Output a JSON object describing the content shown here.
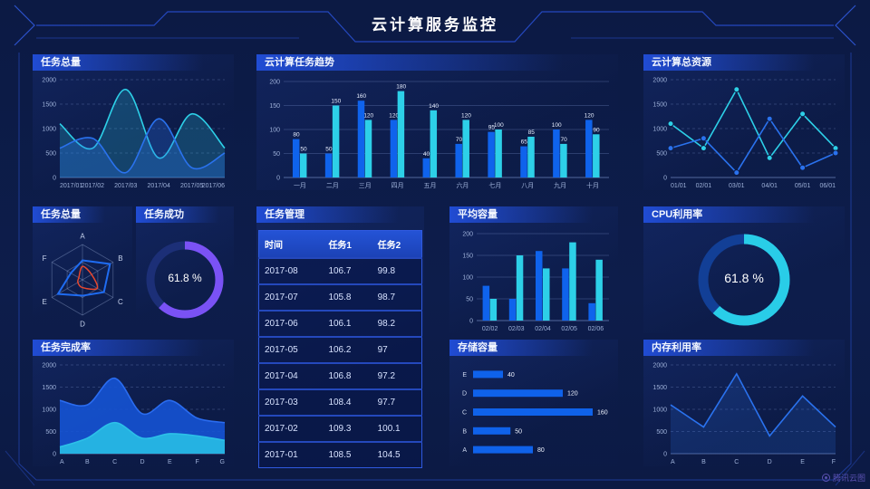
{
  "header": {
    "title": "云计算服务监控"
  },
  "watermark": {
    "label": "腾讯云图"
  },
  "colors": {
    "blue": "#0f63ec",
    "cyan": "#2dd0e8",
    "purple": "#7a52f5",
    "red": "#e6472e",
    "bg": "#0c1a44",
    "line": "#2c55da"
  },
  "panels": {
    "task_total_area": {
      "title": "任务总量"
    },
    "task_trend": {
      "title": "云计算任务趋势"
    },
    "total_resources": {
      "title": "云计算总资源"
    },
    "task_total_radar": {
      "title": "任务总量"
    },
    "task_success": {
      "title": "任务成功",
      "value": "61.8 %"
    },
    "task_manage": {
      "title": "任务管理"
    },
    "avg_capacity": {
      "title": "平均容量"
    },
    "cpu": {
      "title": "CPU利用率",
      "value": "61.8 %"
    },
    "completion": {
      "title": "任务完成率"
    },
    "storage": {
      "title": "存储容量"
    },
    "memory": {
      "title": "内存利用率"
    }
  },
  "table": {
    "columns": [
      "时间",
      "任务1",
      "任务2"
    ],
    "rows": [
      [
        "2017-08",
        "106.7",
        "99.8"
      ],
      [
        "2017-07",
        "105.8",
        "98.7"
      ],
      [
        "2017-06",
        "106.1",
        "98.2"
      ],
      [
        "2017-05",
        "106.2",
        "97"
      ],
      [
        "2017-04",
        "106.8",
        "97.2"
      ],
      [
        "2017-03",
        "108.4",
        "97.7"
      ],
      [
        "2017-02",
        "109.3",
        "100.1"
      ],
      [
        "2017-01",
        "108.5",
        "104.5"
      ]
    ]
  },
  "chart_data": [
    {
      "id": "task_total",
      "type": "line",
      "title": "任务总量",
      "grid": "dash",
      "x": [
        "2017/01",
        "2017/02",
        "2017/03",
        "2017/04",
        "2017/05",
        "2017/06"
      ],
      "ylim": [
        0,
        2000
      ],
      "yticks": [
        0,
        500,
        1000,
        1500,
        2000
      ],
      "series": [
        {
          "color": "#2dd0e8",
          "values": [
            1100,
            600,
            1800,
            400,
            1300,
            600
          ],
          "smooth": true,
          "fill": 0.22
        },
        {
          "color": "#2a72ee",
          "values": [
            600,
            800,
            100,
            1200,
            200,
            500
          ],
          "smooth": true,
          "fill": 0.28
        }
      ]
    },
    {
      "id": "task_trend",
      "type": "bar",
      "title": "云计算任务趋势",
      "grid": "solid",
      "labels": true,
      "categories": [
        "一月",
        "二月",
        "三月",
        "四月",
        "五月",
        "六月",
        "七月",
        "八月",
        "九月",
        "十月"
      ],
      "ylim": [
        0,
        200
      ],
      "yticks": [
        0,
        50,
        100,
        150,
        200
      ],
      "series": [
        {
          "color": "#0f63ec",
          "values": [
            80,
            50,
            160,
            120,
            40,
            70,
            95,
            65,
            100,
            120
          ]
        },
        {
          "color": "#2dd0e8",
          "values": [
            50,
            150,
            120,
            180,
            140,
            120,
            100,
            85,
            70,
            90
          ]
        }
      ]
    },
    {
      "id": "total_resources",
      "type": "line",
      "title": "云计算总资源",
      "grid": "dash",
      "x": [
        "01/01",
        "02/01",
        "03/01",
        "04/01",
        "05/01",
        "06/01"
      ],
      "ylim": [
        0,
        2000
      ],
      "yticks": [
        0,
        500,
        1000,
        1500,
        2000
      ],
      "series": [
        {
          "color": "#2dd0e8",
          "values": [
            1100,
            600,
            1800,
            400,
            1300,
            600
          ],
          "markers": true
        },
        {
          "color": "#2a72ee",
          "values": [
            600,
            800,
            100,
            1200,
            200,
            500
          ],
          "markers": true
        }
      ]
    },
    {
      "id": "task_total_radar",
      "type": "radar",
      "title": "任务总量",
      "axes": [
        "A",
        "B",
        "C",
        "D",
        "E",
        "F"
      ],
      "max": 100,
      "series": [
        {
          "color": "#1f6cf2",
          "values": [
            55,
            90,
            70,
            45,
            80,
            38
          ]
        },
        {
          "color": "#e6472e",
          "values": [
            38,
            30,
            48,
            22,
            15,
            12
          ],
          "smooth": true
        }
      ]
    },
    {
      "id": "task_success",
      "type": "donut",
      "title": "任务成功",
      "percent": 61.8,
      "label": "61.8 %",
      "color": "#7a52f5",
      "rest": "#1c2f77"
    },
    {
      "id": "avg_capacity",
      "type": "bar",
      "title": "平均容量",
      "grid": "solid",
      "labels": false,
      "categories": [
        "02/02",
        "02/03",
        "02/04",
        "02/05",
        "02/06"
      ],
      "ylim": [
        0,
        200
      ],
      "yticks": [
        0,
        50,
        100,
        150,
        200
      ],
      "series": [
        {
          "color": "#0f63ec",
          "values": [
            80,
            50,
            160,
            120,
            40
          ]
        },
        {
          "color": "#2dd0e8",
          "values": [
            50,
            150,
            120,
            180,
            140
          ]
        }
      ]
    },
    {
      "id": "cpu",
      "type": "donut",
      "title": "CPU利用率",
      "percent": 61.8,
      "label": "61.8 %",
      "color": "#29cde8",
      "rest": "#123f96"
    },
    {
      "id": "completion",
      "type": "line",
      "title": "任务完成率",
      "grid": "dash",
      "x": [
        "A",
        "B",
        "C",
        "D",
        "E",
        "F",
        "G"
      ],
      "ylim": [
        0,
        2000
      ],
      "yticks": [
        0,
        500,
        1000,
        1500,
        2000
      ],
      "series": [
        {
          "color": "#2a6cf0",
          "values": [
            1200,
            1100,
            1700,
            900,
            1200,
            800,
            700
          ],
          "smooth": true,
          "fill": 0.9,
          "fillColor": "#1553d4"
        },
        {
          "color": "#2cc0e8",
          "values": [
            150,
            350,
            700,
            350,
            450,
            400,
            300
          ],
          "smooth": true,
          "fill": 1,
          "fillColor": "#25b2e2"
        }
      ]
    },
    {
      "id": "storage",
      "type": "hbar",
      "title": "存储容量",
      "categories": [
        "E",
        "D",
        "C",
        "B",
        "A"
      ],
      "values": [
        40,
        120,
        160,
        50,
        80
      ],
      "color": "#0f62ea",
      "max": 160
    },
    {
      "id": "memory",
      "type": "line",
      "title": "内存利用率",
      "grid": "dash",
      "x": [
        "A",
        "B",
        "C",
        "D",
        "E",
        "F"
      ],
      "ylim": [
        0,
        2000
      ],
      "yticks": [
        0,
        500,
        1000,
        1500,
        2000
      ],
      "series": [
        {
          "color": "#2a72ee",
          "values": [
            1100,
            600,
            1800,
            400,
            1300,
            600
          ],
          "fill": 0.18
        }
      ]
    }
  ]
}
